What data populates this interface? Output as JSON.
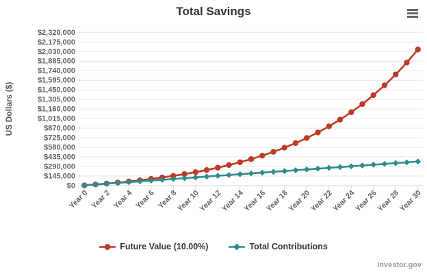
{
  "header": {
    "title": "Total Savings"
  },
  "credit": "Investor.gov",
  "colors": {
    "future_value": "#bd3a26",
    "total_contributions": "#2f8c8c",
    "gridline": "#e6e6e6",
    "axis_line": "#ccd6eb",
    "axis_text": "#606063",
    "title_text": "#333333"
  },
  "legend": {
    "items": [
      {
        "label": "Future Value (10.00%)",
        "color": "#bd3a26",
        "marker": "circle"
      },
      {
        "label": "Total Contributions",
        "color": "#2f8c8c",
        "marker": "diamond"
      }
    ]
  },
  "chart_data": {
    "type": "line",
    "title": "Total Savings",
    "xlabel": "",
    "ylabel": "US Dollars ($)",
    "grid": "horizontal",
    "legend_position": "bottom",
    "ylim": [
      0,
      2320000
    ],
    "x": [
      0,
      1,
      2,
      3,
      4,
      5,
      6,
      7,
      8,
      9,
      10,
      11,
      12,
      13,
      14,
      15,
      16,
      17,
      18,
      19,
      20,
      21,
      22,
      23,
      24,
      25,
      26,
      27,
      28,
      29,
      30
    ],
    "x_ticks": [
      {
        "year": 0,
        "label": "Year 0"
      },
      {
        "year": 2,
        "label": "Year 2"
      },
      {
        "year": 4,
        "label": "Year 4"
      },
      {
        "year": 6,
        "label": "Year 6"
      },
      {
        "year": 8,
        "label": "Year 8"
      },
      {
        "year": 10,
        "label": "Year 10"
      },
      {
        "year": 12,
        "label": "Year 12"
      },
      {
        "year": 14,
        "label": "Year 14"
      },
      {
        "year": 16,
        "label": "Year 16"
      },
      {
        "year": 18,
        "label": "Year 18"
      },
      {
        "year": 20,
        "label": "Year 20"
      },
      {
        "year": 22,
        "label": "Year 22"
      },
      {
        "year": 24,
        "label": "Year 24"
      },
      {
        "year": 26,
        "label": "Year 26"
      },
      {
        "year": 28,
        "label": "Year 28"
      },
      {
        "year": 30,
        "label": "Year 30"
      }
    ],
    "y_ticks": [
      {
        "value": 0,
        "label": "$0"
      },
      {
        "value": 145000,
        "label": "$145,000"
      },
      {
        "value": 290000,
        "label": "$290,000"
      },
      {
        "value": 435000,
        "label": "$435,000"
      },
      {
        "value": 580000,
        "label": "$580,000"
      },
      {
        "value": 725000,
        "label": "$725,000"
      },
      {
        "value": 870000,
        "label": "$870,000"
      },
      {
        "value": 1015000,
        "label": "$1,015,000"
      },
      {
        "value": 1160000,
        "label": "$1,160,000"
      },
      {
        "value": 1305000,
        "label": "$1,305,000"
      },
      {
        "value": 1450000,
        "label": "$1,450,000"
      },
      {
        "value": 1595000,
        "label": "$1,595,000"
      },
      {
        "value": 1740000,
        "label": "$1,740,000"
      },
      {
        "value": 1885000,
        "label": "$1,885,000"
      },
      {
        "value": 2030000,
        "label": "$2,030,000"
      },
      {
        "value": 2175000,
        "label": "$2,175,000"
      },
      {
        "value": 2320000,
        "label": "$2,320,000"
      }
    ],
    "series": [
      {
        "name": "Future Value (10.00%)",
        "color": "#bd3a26",
        "marker": "circle",
        "values": [
          5000,
          17500,
          31250,
          46375,
          63013,
          81314,
          101445,
          123590,
          147949,
          174743,
          204218,
          236640,
          272304,
          311534,
          354687,
          402156,
          454372,
          511809,
          574990,
          644489,
          720937,
          805031,
          897534,
          999288,
          1111217,
          1234338,
          1369772,
          1518749,
          1682624,
          1862887,
          2061175
        ]
      },
      {
        "name": "Total Contributions",
        "color": "#2f8c8c",
        "marker": "diamond",
        "values": [
          5000,
          17000,
          29000,
          41000,
          53000,
          65000,
          77000,
          89000,
          101000,
          113000,
          125000,
          137000,
          149000,
          161000,
          173000,
          185000,
          197000,
          209000,
          221000,
          233000,
          245000,
          257000,
          269000,
          281000,
          293000,
          305000,
          317000,
          329000,
          341000,
          353000,
          365000
        ]
      }
    ]
  }
}
